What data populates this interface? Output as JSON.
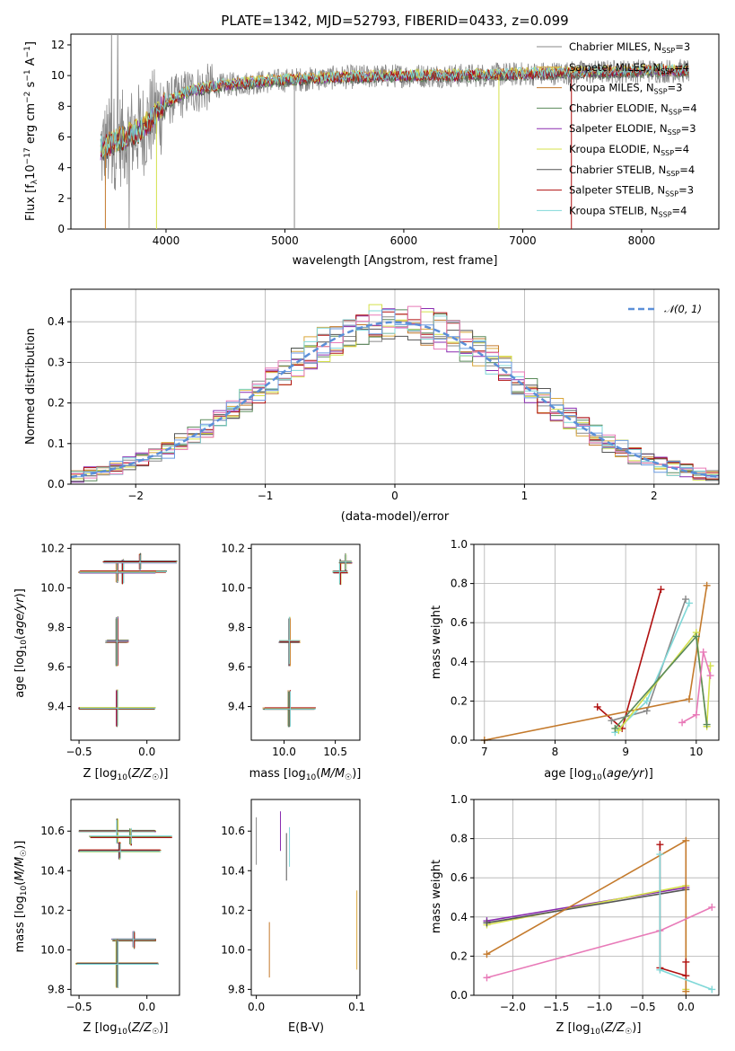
{
  "figure": {
    "title": "PLATE=1342, MJD=52793, FIBERID=0433, z=0.099"
  },
  "colors": {
    "Chabrier MILES": "#888888",
    "Salpeter MILES": "#d9a63a",
    "Kroupa MILES": "#c47a2c",
    "Chabrier ELODIE": "#5a8a5a",
    "Salpeter ELODIE": "#8a2cb0",
    "Kroupa ELODIE": "#d4e04a",
    "Chabrier STELIB": "#555555",
    "Salpeter STELIB": "#b01010",
    "Kroupa STELIB": "#80d8d8",
    "gauss": "#5b8fd8",
    "extra_pink": "#e87ab8",
    "extra_blue": "#6b9ae0"
  },
  "chart_data": [
    {
      "type": "line",
      "id": "spectrum",
      "xlabel": "wavelength [Angstrom, rest frame]",
      "ylabel": "Flux [f_λ 10^-17 erg cm^-2 s^-1 A^-1]",
      "xlim": [
        3200,
        8650
      ],
      "ylim": [
        0,
        12.7
      ],
      "xticks": [
        "4000",
        "5000",
        "6000",
        "7000",
        "8000"
      ],
      "yticks": [
        "0",
        "2",
        "4",
        "6",
        "8",
        "10",
        "12"
      ],
      "legend_position": "top-right",
      "legend": [
        "Chabrier MILES, N_SSP=3",
        "Salpeter MILES, N_SSP=4",
        "Kroupa MILES, N_SSP=3",
        "Chabrier ELODIE, N_SSP=4",
        "Salpeter ELODIE, N_SSP=3",
        "Kroupa ELODIE, N_SSP=4",
        "Chabrier STELIB, N_SSP=4",
        "Salpeter STELIB, N_SSP=3",
        "Kroupa STELIB, N_SSP=4"
      ],
      "continuum": {
        "x": [
          3450,
          3600,
          3800,
          4000,
          4200,
          4500,
          5000,
          5500,
          6000,
          6500,
          7000,
          7500,
          8000,
          8400
        ],
        "y": [
          5.2,
          5.8,
          6.5,
          8.2,
          9.0,
          9.4,
          9.7,
          9.9,
          10.0,
          10.0,
          10.1,
          10.2,
          10.3,
          10.3
        ]
      }
    },
    {
      "type": "line",
      "id": "residuals",
      "xlabel": "(data-model)/error",
      "ylabel": "Normed distribution",
      "xlim": [
        -2.5,
        2.5
      ],
      "ylim": [
        0,
        0.48
      ],
      "xticks": [
        "−2",
        "−1",
        "0",
        "1",
        "2"
      ],
      "yticks": [
        "0.0",
        "0.1",
        "0.2",
        "0.3",
        "0.4"
      ],
      "grid": true,
      "legend_position": "top-right",
      "legend": [
        "𝒩(0, 1)"
      ]
    },
    {
      "type": "scatter",
      "id": "age_Z",
      "xlabel": "Z [log10(Z/Z☉)]",
      "ylabel": "age  [log10(age/yr)]",
      "xlim": [
        -0.56,
        0.24
      ],
      "ylim": [
        9.23,
        10.22
      ],
      "xticks": [
        "−0.5",
        "0.0"
      ],
      "yticks": [
        "9.4",
        "9.6",
        "9.8",
        "10.0",
        "10.2"
      ],
      "points": [
        {
          "x": -0.18,
          "y": 10.08,
          "xerr": 0.32,
          "yerr": 0.06
        },
        {
          "x": -0.22,
          "y": 10.08,
          "xerr": 0.28,
          "yerr": 0.05
        },
        {
          "x": -0.05,
          "y": 10.13,
          "xerr": 0.27,
          "yerr": 0.04
        },
        {
          "x": -0.22,
          "y": 9.73,
          "xerr": 0.08,
          "yerr": 0.12
        },
        {
          "x": -0.22,
          "y": 9.39,
          "xerr": 0.28,
          "yerr": 0.09
        }
      ]
    },
    {
      "type": "scatter",
      "id": "age_mass",
      "xlabel": "mass [log10(M/M☉)]",
      "ylabel": "",
      "xlim": [
        9.68,
        10.74
      ],
      "ylim": [
        9.23,
        10.22
      ],
      "xticks": [
        "10.0",
        "10.5"
      ],
      "yticks": [
        "9.4",
        "9.6",
        "9.8",
        "10.0",
        "10.2"
      ],
      "points": [
        {
          "x": 10.55,
          "y": 10.08,
          "xerr": 0.07,
          "yerr": 0.06
        },
        {
          "x": 10.6,
          "y": 10.13,
          "xerr": 0.06,
          "yerr": 0.04
        },
        {
          "x": 10.05,
          "y": 9.73,
          "xerr": 0.1,
          "yerr": 0.12
        },
        {
          "x": 10.05,
          "y": 9.39,
          "xerr": 0.25,
          "yerr": 0.09
        }
      ]
    },
    {
      "type": "line",
      "id": "weight_age",
      "xlabel": "age  [log10(age/yr)]",
      "ylabel": "mass weight",
      "xlim": [
        6.85,
        10.32
      ],
      "ylim": [
        0,
        1.0
      ],
      "xticks": [
        "7",
        "8",
        "9",
        "10"
      ],
      "yticks": [
        "0.0",
        "0.2",
        "0.4",
        "0.6",
        "0.8",
        "1.0"
      ],
      "grid": true
    },
    {
      "type": "scatter",
      "id": "mass_Z",
      "xlabel": "Z [log10(Z/Z☉)]",
      "ylabel": "mass [log10(M/M☉)]",
      "xlim": [
        -0.56,
        0.24
      ],
      "ylim": [
        9.77,
        10.76
      ],
      "xticks": [
        "−0.5",
        "0.0"
      ],
      "yticks": [
        "9.8",
        "10.0",
        "10.2",
        "10.4",
        "10.6"
      ],
      "points": [
        {
          "x": -0.22,
          "y": 10.6,
          "xerr": 0.28,
          "yerr": 0.06
        },
        {
          "x": -0.12,
          "y": 10.57,
          "xerr": 0.3,
          "yerr": 0.04
        },
        {
          "x": -0.2,
          "y": 10.5,
          "xerr": 0.3,
          "yerr": 0.04
        },
        {
          "x": -0.1,
          "y": 10.05,
          "xerr": 0.16,
          "yerr": 0.04
        },
        {
          "x": -0.22,
          "y": 9.93,
          "xerr": 0.3,
          "yerr": 0.12
        }
      ]
    },
    {
      "type": "scatter",
      "id": "mass_ebv",
      "xlabel": "E(B-V)",
      "ylabel": "",
      "xlim": [
        -0.005,
        0.103
      ],
      "ylim": [
        9.77,
        10.76
      ],
      "xticks": [
        "0.0",
        "0.1"
      ],
      "yticks": [
        "9.8",
        "10.0",
        "10.2",
        "10.4",
        "10.6"
      ]
    },
    {
      "type": "line",
      "id": "weight_Z",
      "xlabel": "Z [log10(Z/Z☉)]",
      "ylabel": "mass weight",
      "xlim": [
        -2.45,
        0.38
      ],
      "ylim": [
        0,
        1.0
      ],
      "xticks": [
        "−2.0",
        "−1.5",
        "−1.0",
        "−0.5",
        "0.0"
      ],
      "yticks": [
        "0.0",
        "0.2",
        "0.4",
        "0.6",
        "0.8",
        "1.0"
      ],
      "grid": true
    }
  ]
}
